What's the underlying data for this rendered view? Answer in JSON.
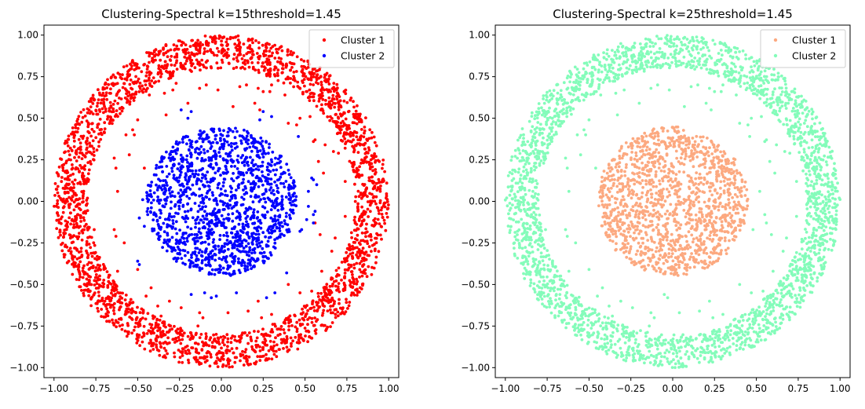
{
  "chart_data": [
    {
      "type": "scatter",
      "title": "Clustering-Spectral k=15threshold=1.45",
      "xlabel": "",
      "ylabel": "",
      "xlim": [
        -1.06,
        1.06
      ],
      "ylim": [
        -1.06,
        1.06
      ],
      "xticks": [
        -1.0,
        -0.75,
        -0.5,
        -0.25,
        0.0,
        0.25,
        0.5,
        0.75,
        1.0
      ],
      "yticks": [
        -1.0,
        -0.75,
        -0.5,
        -0.25,
        0.0,
        0.25,
        0.5,
        0.75,
        1.0
      ],
      "tick_labels": [
        "−1.00",
        "−0.75",
        "−0.50",
        "−0.25",
        "0.00",
        "0.25",
        "0.50",
        "0.75",
        "1.00"
      ],
      "grid": false,
      "legend_position": "top-right",
      "series": [
        {
          "name": "Cluster 1",
          "color": "#ff0000",
          "points": [
            [
              -0.43,
              0.64
            ],
            [
              -0.34,
              0.65
            ],
            [
              -0.29,
              0.67
            ],
            [
              -0.27,
              0.71
            ],
            [
              -0.13,
              0.68
            ],
            [
              -0.09,
              0.7
            ],
            [
              -0.02,
              0.67
            ],
            [
              0.11,
              0.69
            ],
            [
              0.15,
              0.7
            ],
            [
              0.22,
              0.68
            ],
            [
              0.29,
              0.66
            ],
            [
              0.2,
              0.59
            ],
            [
              0.25,
              0.66
            ],
            [
              0.23,
              0.55
            ],
            [
              0.07,
              0.57
            ],
            [
              -0.2,
              0.59
            ],
            [
              -0.33,
              0.52
            ],
            [
              -0.5,
              0.49
            ],
            [
              -0.53,
              0.43
            ],
            [
              -0.57,
              0.4
            ],
            [
              -0.64,
              0.26
            ],
            [
              -0.55,
              0.28
            ],
            [
              -0.63,
              0.2
            ],
            [
              -0.46,
              0.2
            ],
            [
              -0.52,
              0.4
            ],
            [
              -0.62,
              0.06
            ],
            [
              -0.76,
              -0.17
            ],
            [
              -0.64,
              -0.17
            ],
            [
              -0.58,
              -0.25
            ],
            [
              -0.63,
              -0.21
            ],
            [
              -0.62,
              -0.42
            ],
            [
              -0.5,
              -0.41
            ],
            [
              -0.42,
              -0.52
            ],
            [
              -0.31,
              -0.6
            ],
            [
              -0.45,
              -0.57
            ],
            [
              -0.38,
              -0.63
            ],
            [
              -0.36,
              -0.69
            ],
            [
              -0.24,
              -0.64
            ],
            [
              -0.13,
              -0.67
            ],
            [
              -0.11,
              -0.7
            ],
            [
              -0.14,
              -0.75
            ],
            [
              -0.12,
              -0.8
            ],
            [
              0.04,
              -0.67
            ],
            [
              0.16,
              -0.66
            ],
            [
              0.22,
              -0.6
            ],
            [
              0.24,
              -0.7
            ],
            [
              0.3,
              -0.68
            ],
            [
              0.4,
              -0.5
            ],
            [
              0.47,
              -0.55
            ],
            [
              0.54,
              -0.54
            ],
            [
              0.6,
              -0.42
            ],
            [
              0.66,
              -0.3
            ],
            [
              0.68,
              -0.22
            ],
            [
              0.74,
              -0.09
            ],
            [
              0.56,
              -0.13
            ],
            [
              0.59,
              -0.2
            ],
            [
              0.74,
              0.12
            ],
            [
              0.7,
              0.29
            ],
            [
              0.55,
              0.36
            ],
            [
              0.56,
              0.37
            ],
            [
              0.62,
              0.34
            ],
            [
              0.45,
              0.46
            ],
            [
              0.4,
              0.47
            ],
            [
              0.58,
              0.24
            ],
            [
              0.61,
              0.17
            ],
            [
              0.67,
              0.3
            ],
            [
              0.53,
              0.51
            ],
            [
              0.47,
              0.5
            ],
            [
              0.38,
              0.64
            ],
            [
              0.3,
              0.7
            ]
          ]
        },
        {
          "name": "Cluster 2",
          "color": "#0000ff",
          "points": [
            [
              -0.18,
              0.54
            ],
            [
              -0.24,
              0.55
            ],
            [
              -0.2,
              0.5
            ],
            [
              0.25,
              0.54
            ],
            [
              0.23,
              0.49
            ],
            [
              0.3,
              0.51
            ],
            [
              0.46,
              0.39
            ],
            [
              0.54,
              0.14
            ],
            [
              0.55,
              0.13
            ],
            [
              0.57,
              0.1
            ],
            [
              0.52,
              0.06
            ],
            [
              0.52,
              -0.03
            ],
            [
              0.56,
              -0.06
            ],
            [
              0.55,
              -0.08
            ],
            [
              0.51,
              -0.11
            ],
            [
              0.55,
              -0.13
            ],
            [
              0.48,
              -0.17
            ],
            [
              0.47,
              -0.18
            ],
            [
              -0.47,
              0.01
            ],
            [
              -0.44,
              -0.08
            ],
            [
              -0.46,
              -0.15
            ],
            [
              -0.49,
              -0.1
            ],
            [
              -0.5,
              -0.36
            ],
            [
              -0.49,
              -0.38
            ],
            [
              -0.18,
              -0.56
            ],
            [
              -0.1,
              -0.55
            ],
            [
              -0.06,
              -0.58
            ],
            [
              -0.03,
              -0.57
            ],
            [
              0.09,
              -0.55
            ],
            [
              0.27,
              -0.58
            ],
            [
              0.32,
              -0.55
            ],
            [
              0.39,
              -0.43
            ]
          ]
        }
      ]
    },
    {
      "type": "scatter",
      "title": "Clustering-Spectral k=25threshold=1.45",
      "xlabel": "",
      "ylabel": "",
      "xlim": [
        -1.06,
        1.06
      ],
      "ylim": [
        -1.06,
        1.06
      ],
      "xticks": [
        -1.0,
        -0.75,
        -0.5,
        -0.25,
        0.0,
        0.25,
        0.5,
        0.75,
        1.0
      ],
      "yticks": [
        -1.0,
        -0.75,
        -0.5,
        -0.25,
        0.0,
        0.25,
        0.5,
        0.75,
        1.0
      ],
      "tick_labels": [
        "−1.00",
        "−0.75",
        "−0.50",
        "−0.25",
        "0.00",
        "0.25",
        "0.50",
        "0.75",
        "1.00"
      ],
      "grid": false,
      "legend_position": "top-right",
      "series": [
        {
          "name": "Cluster 1",
          "color": "#fca980",
          "points": [
            [
              -0.2,
              0.2
            ],
            [
              0.1,
              0.35
            ],
            [
              -0.38,
              -0.1
            ],
            [
              0.02,
              -0.38
            ]
          ]
        },
        {
          "name": "Cluster 2",
          "color": "#84fcba",
          "points": [
            [
              -0.43,
              0.64
            ],
            [
              -0.34,
              0.65
            ],
            [
              -0.29,
              0.67
            ],
            [
              -0.13,
              0.68
            ],
            [
              -0.09,
              0.7
            ],
            [
              -0.02,
              0.67
            ],
            [
              0.11,
              0.69
            ],
            [
              0.15,
              0.7
            ],
            [
              0.22,
              0.68
            ],
            [
              0.29,
              0.66
            ],
            [
              0.2,
              0.59
            ],
            [
              0.25,
              0.66
            ],
            [
              0.23,
              0.55
            ],
            [
              0.07,
              0.57
            ],
            [
              -0.2,
              0.59
            ],
            [
              -0.33,
              0.52
            ],
            [
              -0.5,
              0.49
            ],
            [
              -0.53,
              0.43
            ],
            [
              -0.57,
              0.4
            ],
            [
              -0.64,
              0.26
            ],
            [
              -0.55,
              0.28
            ],
            [
              -0.63,
              0.2
            ],
            [
              -0.46,
              0.2
            ],
            [
              -0.52,
              0.4
            ],
            [
              -0.62,
              0.06
            ],
            [
              -0.76,
              -0.17
            ],
            [
              -0.64,
              -0.17
            ],
            [
              -0.58,
              -0.25
            ],
            [
              -0.63,
              -0.21
            ],
            [
              -0.62,
              -0.42
            ],
            [
              -0.5,
              -0.41
            ],
            [
              -0.42,
              -0.52
            ],
            [
              -0.31,
              -0.6
            ],
            [
              -0.45,
              -0.57
            ],
            [
              -0.38,
              -0.63
            ],
            [
              -0.36,
              -0.69
            ],
            [
              -0.24,
              -0.64
            ],
            [
              -0.13,
              -0.67
            ],
            [
              -0.11,
              -0.7
            ],
            [
              -0.14,
              -0.75
            ],
            [
              -0.05,
              -0.56
            ],
            [
              -0.03,
              -0.58
            ],
            [
              0.04,
              -0.67
            ],
            [
              0.16,
              -0.66
            ],
            [
              0.22,
              -0.6
            ],
            [
              0.24,
              -0.7
            ],
            [
              0.3,
              -0.68
            ],
            [
              0.4,
              -0.5
            ],
            [
              0.47,
              -0.55
            ],
            [
              0.54,
              -0.54
            ],
            [
              0.6,
              -0.42
            ],
            [
              0.66,
              -0.3
            ],
            [
              0.68,
              -0.22
            ],
            [
              0.74,
              -0.09
            ],
            [
              0.56,
              -0.13
            ],
            [
              0.59,
              -0.2
            ],
            [
              0.74,
              0.12
            ],
            [
              0.7,
              0.29
            ],
            [
              0.55,
              0.36
            ],
            [
              0.56,
              0.37
            ],
            [
              0.62,
              0.34
            ],
            [
              0.45,
              0.46
            ],
            [
              0.4,
              0.47
            ],
            [
              0.58,
              0.24
            ],
            [
              0.61,
              0.17
            ],
            [
              0.67,
              0.3
            ],
            [
              0.53,
              0.51
            ],
            [
              0.47,
              0.5
            ],
            [
              0.38,
              0.64
            ],
            [
              0.3,
              0.7
            ],
            [
              0.52,
              0.06
            ],
            [
              0.55,
              -0.08
            ],
            [
              0.48,
              -0.17
            ],
            [
              0.46,
              0.39
            ]
          ]
        }
      ]
    }
  ]
}
